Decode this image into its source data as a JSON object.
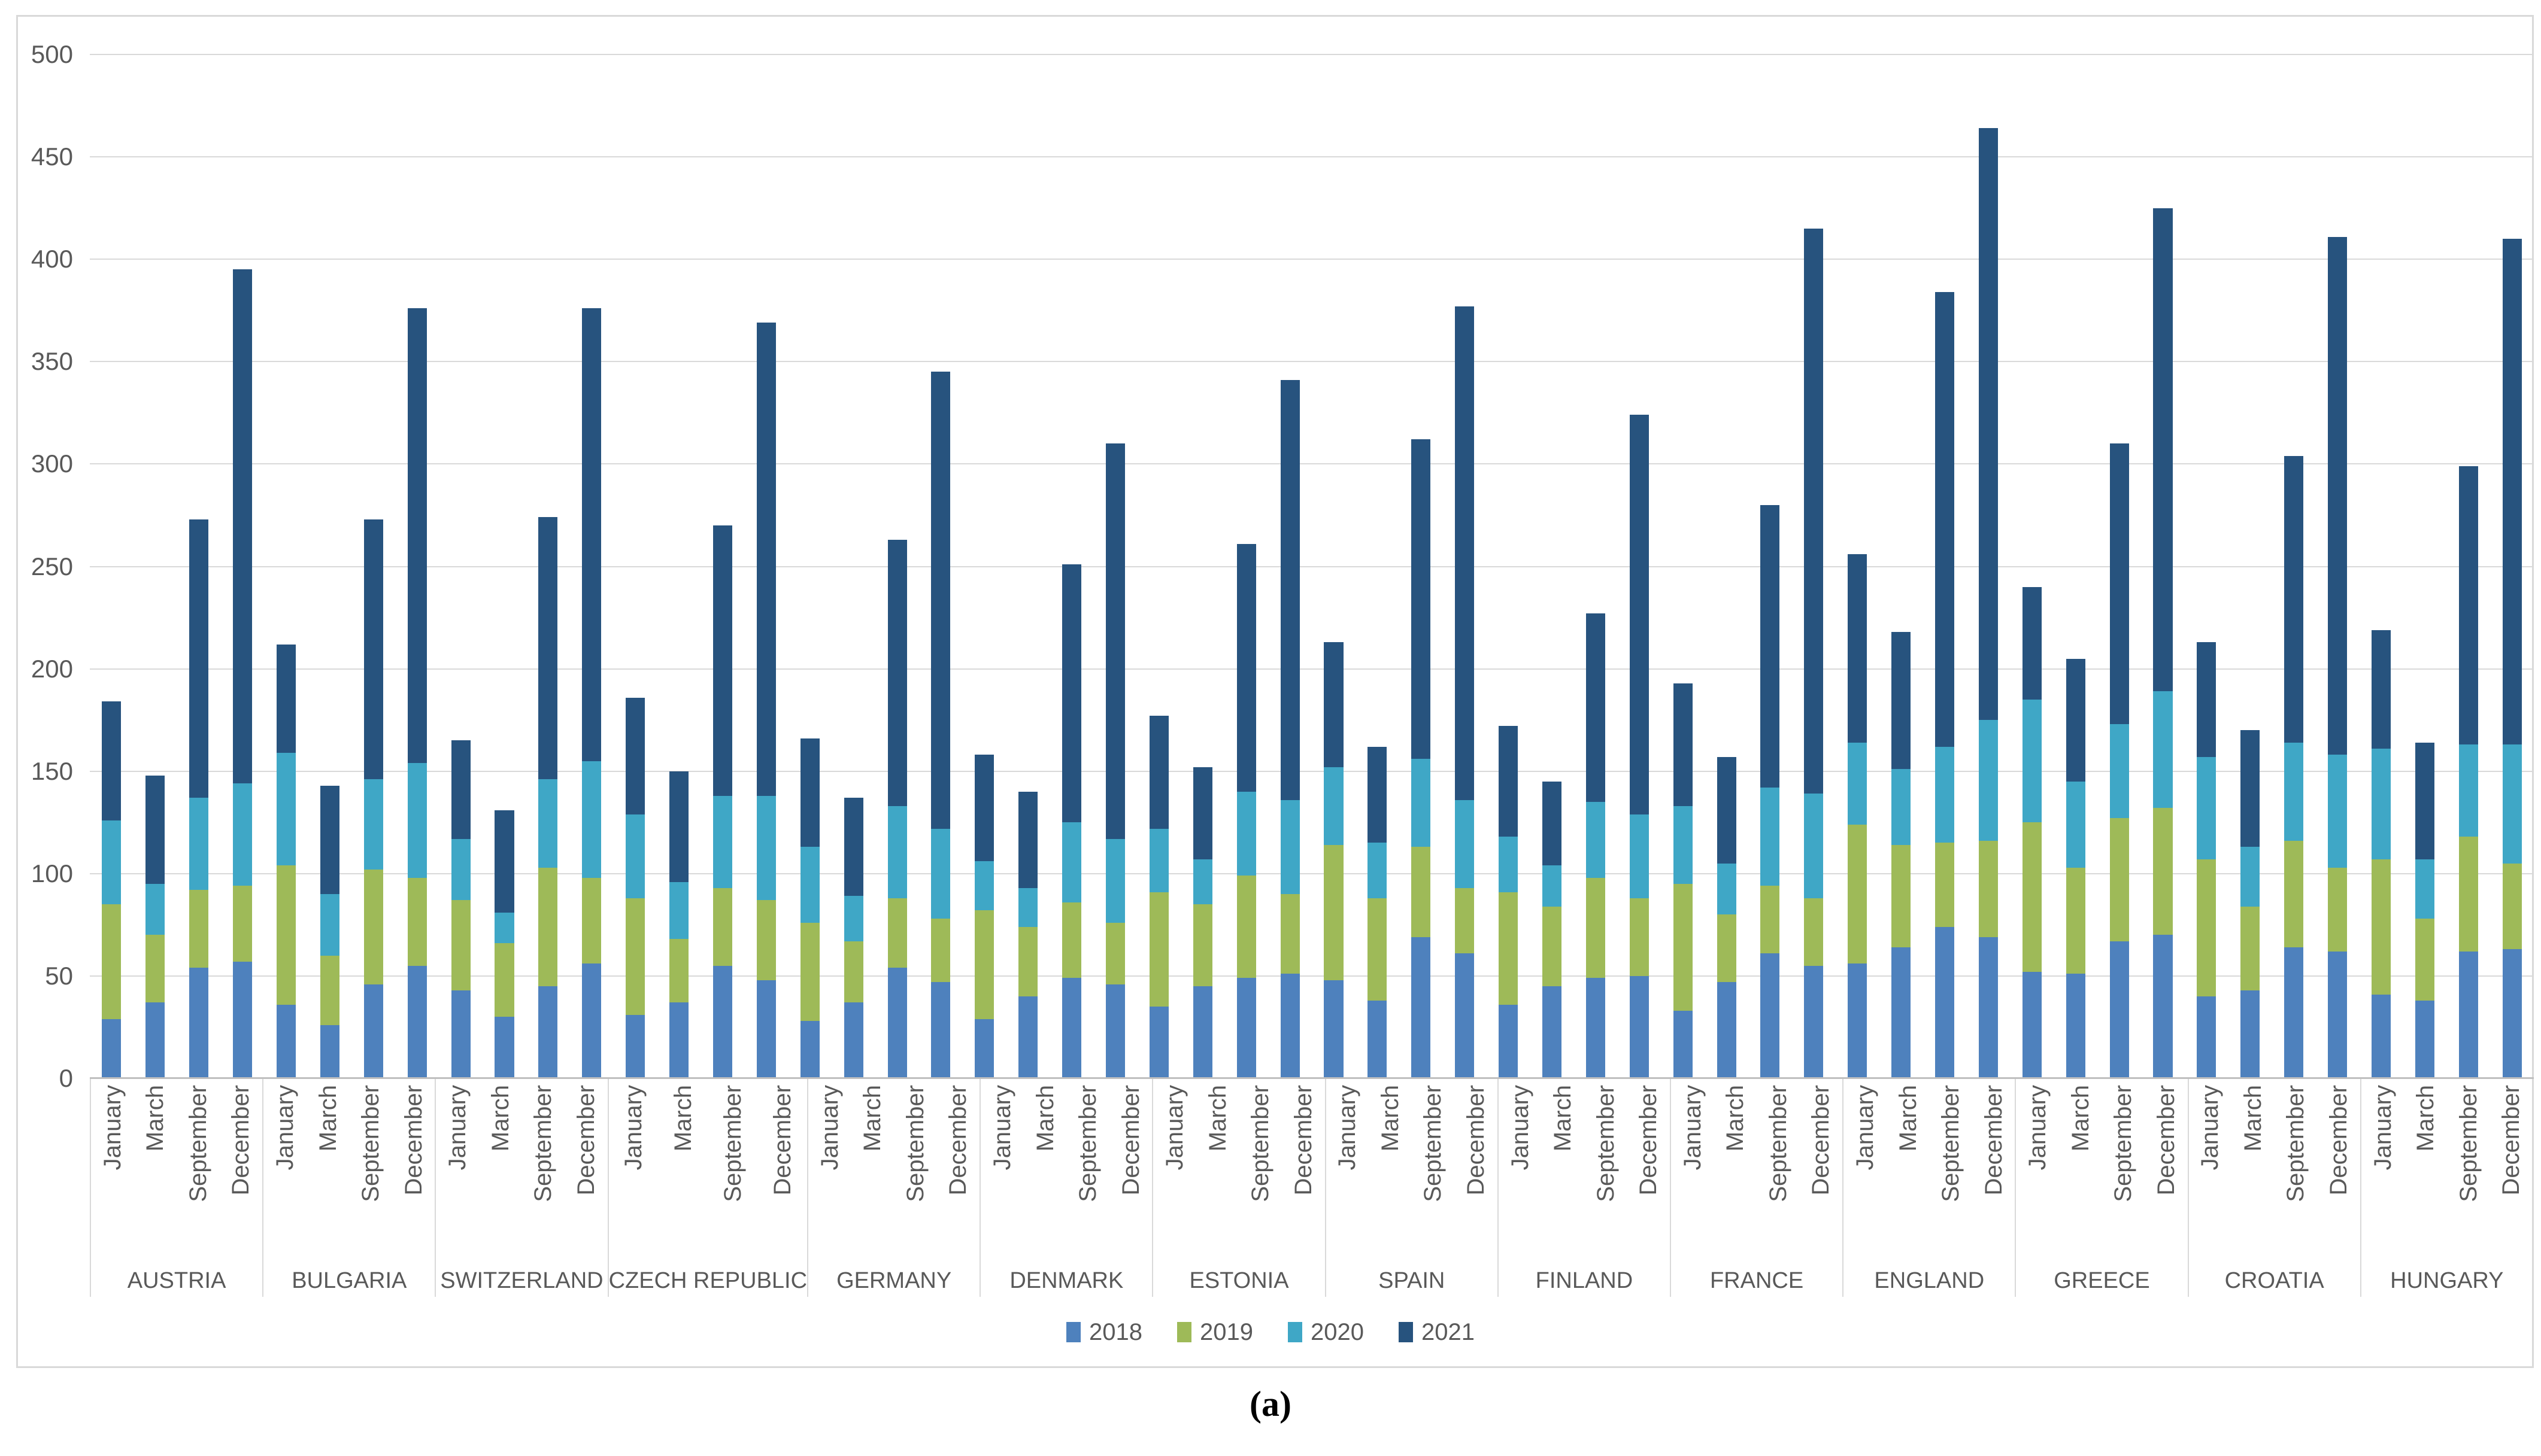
{
  "figure": {
    "caption": "(a)"
  },
  "chart_data": {
    "type": "bar",
    "stacked": true,
    "title": "",
    "xlabel": "",
    "ylabel": "",
    "ylim": [
      0,
      500
    ],
    "yticks": [
      0,
      50,
      100,
      150,
      200,
      250,
      300,
      350,
      400,
      450,
      500
    ],
    "grid": true,
    "legend_position": "bottom",
    "months": [
      "January",
      "March",
      "September",
      "December"
    ],
    "series": [
      {
        "name": "2018",
        "color": "#4e81bd"
      },
      {
        "name": "2019",
        "color": "#9eba58"
      },
      {
        "name": "2020",
        "color": "#3fa7c6"
      },
      {
        "name": "2021",
        "color": "#27537e"
      }
    ],
    "groups": [
      {
        "country": "AUSTRIA",
        "values": [
          [
            29,
            56,
            41,
            58
          ],
          [
            37,
            33,
            25,
            53
          ],
          [
            54,
            38,
            45,
            136
          ],
          [
            57,
            37,
            50,
            251
          ]
        ]
      },
      {
        "country": "BULGARIA",
        "values": [
          [
            36,
            68,
            55,
            53
          ],
          [
            26,
            34,
            30,
            53
          ],
          [
            46,
            56,
            44,
            127
          ],
          [
            55,
            43,
            56,
            222
          ]
        ]
      },
      {
        "country": "SWITZERLAND",
        "values": [
          [
            43,
            44,
            30,
            48
          ],
          [
            30,
            36,
            15,
            50
          ],
          [
            45,
            58,
            43,
            128
          ],
          [
            56,
            42,
            57,
            221
          ]
        ]
      },
      {
        "country": "CZECH REPUBLIC",
        "values": [
          [
            31,
            57,
            41,
            57
          ],
          [
            37,
            31,
            28,
            54
          ],
          [
            55,
            38,
            45,
            132
          ],
          [
            48,
            39,
            51,
            231
          ]
        ]
      },
      {
        "country": "GERMANY",
        "values": [
          [
            28,
            48,
            37,
            53
          ],
          [
            37,
            30,
            22,
            48
          ],
          [
            54,
            34,
            45,
            130
          ],
          [
            47,
            31,
            44,
            223
          ]
        ]
      },
      {
        "country": "DENMARK",
        "values": [
          [
            29,
            53,
            24,
            52
          ],
          [
            40,
            34,
            19,
            47
          ],
          [
            49,
            37,
            39,
            126
          ],
          [
            46,
            30,
            41,
            193
          ]
        ]
      },
      {
        "country": "ESTONIA",
        "values": [
          [
            35,
            56,
            31,
            55
          ],
          [
            45,
            40,
            22,
            45
          ],
          [
            49,
            50,
            41,
            121
          ],
          [
            51,
            39,
            46,
            205
          ]
        ]
      },
      {
        "country": "SPAIN",
        "values": [
          [
            48,
            66,
            38,
            61
          ],
          [
            38,
            50,
            27,
            47
          ],
          [
            69,
            44,
            43,
            156
          ],
          [
            61,
            32,
            43,
            241
          ]
        ]
      },
      {
        "country": "FINLAND",
        "values": [
          [
            36,
            55,
            27,
            54
          ],
          [
            45,
            39,
            20,
            41
          ],
          [
            49,
            49,
            37,
            92
          ],
          [
            50,
            38,
            41,
            195
          ]
        ]
      },
      {
        "country": "FRANCE",
        "values": [
          [
            33,
            62,
            38,
            60
          ],
          [
            47,
            33,
            25,
            52
          ],
          [
            61,
            33,
            48,
            138
          ],
          [
            55,
            33,
            51,
            276
          ]
        ]
      },
      {
        "country": "ENGLAND",
        "values": [
          [
            56,
            68,
            40,
            92
          ],
          [
            64,
            50,
            37,
            67
          ],
          [
            74,
            41,
            47,
            222
          ],
          [
            69,
            47,
            59,
            289
          ]
        ]
      },
      {
        "country": "GREECE",
        "values": [
          [
            52,
            73,
            60,
            55
          ],
          [
            51,
            52,
            42,
            60
          ],
          [
            67,
            60,
            46,
            137
          ],
          [
            70,
            62,
            57,
            236
          ]
        ]
      },
      {
        "country": "CROATIA",
        "values": [
          [
            40,
            67,
            50,
            56
          ],
          [
            43,
            41,
            29,
            57
          ],
          [
            64,
            52,
            48,
            140
          ],
          [
            62,
            41,
            55,
            253
          ]
        ]
      },
      {
        "country": "HUNGARY",
        "values": [
          [
            41,
            66,
            54,
            58
          ],
          [
            38,
            40,
            29,
            57
          ],
          [
            62,
            56,
            45,
            136
          ],
          [
            63,
            42,
            58,
            247
          ]
        ]
      }
    ]
  }
}
